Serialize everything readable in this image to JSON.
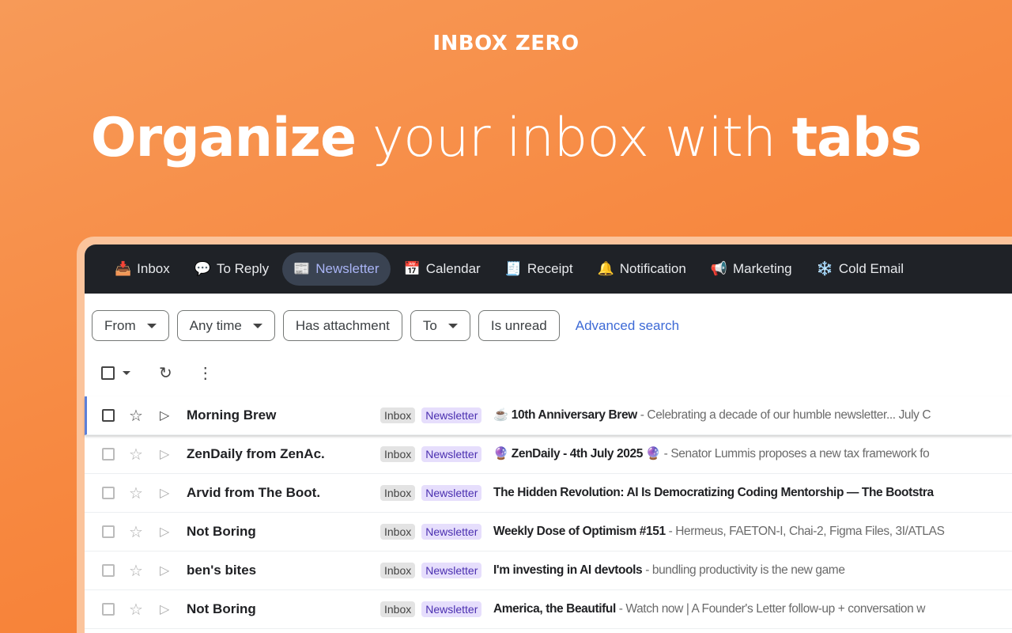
{
  "brand": "INBOX ZERO",
  "headline": {
    "part1": "Organize",
    "part2": " your inbox with ",
    "part3": "tabs"
  },
  "tabs": [
    {
      "icon": "📥",
      "label": "Inbox"
    },
    {
      "icon": "💬",
      "label": "To Reply"
    },
    {
      "icon": "📰",
      "label": "Newsletter",
      "active": true
    },
    {
      "icon": "📅",
      "label": "Calendar"
    },
    {
      "icon": "🧾",
      "label": "Receipt"
    },
    {
      "icon": "🔔",
      "label": "Notification"
    },
    {
      "icon": "📢",
      "label": "Marketing"
    },
    {
      "icon": "❄️",
      "label": "Cold Email"
    }
  ],
  "filters": {
    "from": "From",
    "any_time": "Any time",
    "has_attachment": "Has attachment",
    "to": "To",
    "is_unread": "Is unread",
    "advanced": "Advanced search"
  },
  "labels": {
    "inbox": "Inbox",
    "newsletter": "Newsletter"
  },
  "emails": [
    {
      "sender": "Morning Brew",
      "subject": "☕ 10th Anniversary Brew",
      "snippet": " - Celebrating a decade of our humble newsletter... July C"
    },
    {
      "sender": "ZenDaily from ZenAc.",
      "subject": "🔮 ZenDaily - 4th July 2025 🔮",
      "snippet": " - Senator Lummis proposes a new tax framework fo"
    },
    {
      "sender": "Arvid from The Boot.",
      "subject": "The Hidden Revolution: AI Is Democratizing Coding Mentorship — The Bootstra",
      "snippet": ""
    },
    {
      "sender": "Not Boring",
      "subject": "Weekly Dose of Optimism #151",
      "snippet": " - Hermeus, FAETON-I, Chai-2, Figma Files, 3I/ATLAS"
    },
    {
      "sender": "ben's bites",
      "subject": "I'm investing in AI devtools",
      "snippet": " - bundling productivity is the new game"
    },
    {
      "sender": "Not Boring",
      "subject": "America, the Beautiful",
      "snippet": " - Watch now | A Founder's Letter follow-up + conversation w"
    }
  ]
}
